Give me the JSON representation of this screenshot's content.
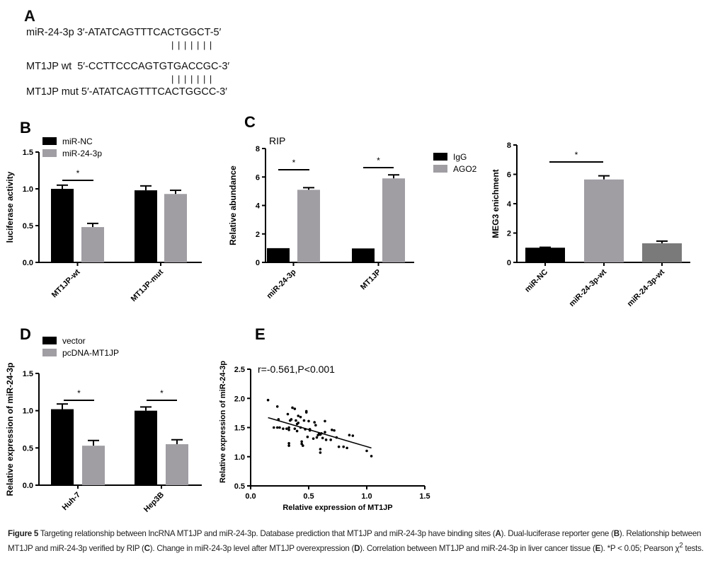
{
  "panel_a": {
    "label": "A",
    "line1": "miR-24-3p 3′-ATATCAGTTTCACTGGCT-5′",
    "pair1": "| | | | | | |",
    "line2": "MT1JP wt  5′-CCTTCCCAGTGTGACCGC-3′",
    "pair2": "| | | | | | |",
    "line3": "MT1JP mut 5′-ATATCAGTTTCACTGGCC-3′"
  },
  "chart_data": [
    {
      "panel": "B",
      "type": "bar",
      "categories": [
        "MT1JP-wt",
        "MT1JP-mut"
      ],
      "series": [
        {
          "name": "miR-NC",
          "color": "#000000",
          "values": [
            1.0,
            0.98
          ],
          "errors": [
            0.05,
            0.06
          ]
        },
        {
          "name": "miR-24-3p",
          "color": "#a09da3",
          "values": [
            0.48,
            0.93
          ],
          "errors": [
            0.05,
            0.05
          ]
        }
      ],
      "xlabel": "",
      "ylabel": "luciferase activity",
      "ylim": [
        0,
        1.5
      ],
      "yticks": [
        "0.0",
        "0.5",
        "1.0",
        "1.5"
      ],
      "significance": [
        "*"
      ],
      "legend": "top-left"
    },
    {
      "panel": "C",
      "type": "bar",
      "title": "RIP",
      "categories": [
        "miR-24-3p",
        "MT1JP"
      ],
      "series": [
        {
          "name": "IgG",
          "color": "#000000",
          "values": [
            1.0,
            0.98
          ],
          "errors": [
            0.0,
            0.0
          ]
        },
        {
          "name": "AGO2",
          "color": "#a09da3",
          "values": [
            5.1,
            5.9
          ],
          "errors": [
            0.15,
            0.25
          ]
        }
      ],
      "xlabel": "",
      "ylabel": "Relative abundance",
      "ylim": [
        0,
        8
      ],
      "yticks": [
        "0",
        "2",
        "4",
        "6",
        "8"
      ],
      "significance": [
        "*",
        "*"
      ],
      "legend": "right"
    },
    {
      "panel": "C2",
      "type": "bar",
      "categories": [
        "miR-NC",
        "miR-24-3p-wt",
        "miR-24-3p-wt"
      ],
      "series": [
        {
          "name": "",
          "colors": [
            "#000000",
            "#a09da3",
            "#7a7a7a"
          ],
          "values": [
            1.0,
            5.65,
            1.3
          ],
          "errors": [
            0.03,
            0.25,
            0.15
          ]
        }
      ],
      "xlabel": "",
      "ylabel": "MEG3 enichment",
      "ylim": [
        0,
        8
      ],
      "yticks": [
        "0",
        "2",
        "4",
        "6",
        "8"
      ],
      "significance": [
        "*"
      ]
    },
    {
      "panel": "D",
      "type": "bar",
      "categories": [
        "Huh-7",
        "Hep3B"
      ],
      "series": [
        {
          "name": "vector",
          "color": "#000000",
          "values": [
            1.02,
            1.0
          ],
          "errors": [
            0.07,
            0.05
          ]
        },
        {
          "name": "pcDNA-MT1JP",
          "color": "#a09da3",
          "values": [
            0.53,
            0.55
          ],
          "errors": [
            0.07,
            0.06
          ]
        }
      ],
      "xlabel": "",
      "ylabel": "Relative expression of miR-24-3p",
      "ylim": [
        0,
        1.5
      ],
      "yticks": [
        "0.0",
        "0.5",
        "1.0",
        "1.5"
      ],
      "significance": [
        "*",
        "*"
      ],
      "legend": "top-left"
    },
    {
      "panel": "E",
      "type": "scatter",
      "annotation": "r=-0.561,P<0.001",
      "xlabel": "Relative expression of MT1JP",
      "ylabel": "Relative expression of miR-24-3p",
      "xlim": [
        0,
        1.5
      ],
      "ylim": [
        0.5,
        2.5
      ],
      "xticks": [
        "0.0",
        "0.5",
        "1.0",
        "1.5"
      ],
      "yticks": [
        "0.5",
        "1.0",
        "1.5",
        "2.0",
        "2.5"
      ],
      "fit": [
        [
          0.15,
          1.67
        ],
        [
          1.04,
          1.15
        ]
      ],
      "points": [
        [
          0.15,
          1.97
        ],
        [
          0.23,
          1.86
        ],
        [
          0.24,
          1.64
        ],
        [
          0.2,
          1.5
        ],
        [
          0.23,
          1.5
        ],
        [
          0.25,
          1.5
        ],
        [
          0.28,
          1.48
        ],
        [
          0.31,
          1.48
        ],
        [
          0.33,
          1.5
        ],
        [
          0.33,
          1.46
        ],
        [
          0.32,
          1.73
        ],
        [
          0.36,
          1.84
        ],
        [
          0.38,
          1.82
        ],
        [
          0.34,
          1.62
        ],
        [
          0.35,
          1.64
        ],
        [
          0.33,
          1.23
        ],
        [
          0.33,
          1.19
        ],
        [
          0.38,
          1.48
        ],
        [
          0.39,
          1.62
        ],
        [
          0.4,
          1.56
        ],
        [
          0.4,
          1.44
        ],
        [
          0.41,
          1.58
        ],
        [
          0.41,
          1.7
        ],
        [
          0.43,
          1.68
        ],
        [
          0.43,
          1.5
        ],
        [
          0.44,
          1.26
        ],
        [
          0.44,
          1.22
        ],
        [
          0.45,
          1.19
        ],
        [
          0.46,
          1.62
        ],
        [
          0.47,
          1.47
        ],
        [
          0.48,
          1.78
        ],
        [
          0.48,
          1.76
        ],
        [
          0.49,
          1.34
        ],
        [
          0.5,
          1.61
        ],
        [
          0.51,
          1.45
        ],
        [
          0.51,
          1.47
        ],
        [
          0.54,
          1.31
        ],
        [
          0.55,
          1.59
        ],
        [
          0.56,
          1.54
        ],
        [
          0.57,
          1.33
        ],
        [
          0.58,
          1.37
        ],
        [
          0.59,
          1.4
        ],
        [
          0.6,
          1.13
        ],
        [
          0.6,
          1.07
        ],
        [
          0.6,
          1.38
        ],
        [
          0.61,
          1.4
        ],
        [
          0.62,
          1.32
        ],
        [
          0.64,
          1.42
        ],
        [
          0.64,
          1.61
        ],
        [
          0.65,
          1.29
        ],
        [
          0.69,
          1.29
        ],
        [
          0.7,
          1.46
        ],
        [
          0.72,
          1.45
        ],
        [
          0.74,
          1.33
        ],
        [
          0.76,
          1.17
        ],
        [
          0.8,
          1.17
        ],
        [
          0.83,
          1.15
        ],
        [
          0.85,
          1.37
        ],
        [
          0.88,
          1.36
        ],
        [
          1.0,
          1.1
        ],
        [
          1.04,
          1.01
        ]
      ]
    }
  ],
  "panel_labels": [
    "B",
    "C",
    "D",
    "E"
  ],
  "caption": {
    "figure_label": "Figure 5",
    "text1": " Targeting relationship between lncRNA MT1JP and miR-24-3p. Database prediction that MT1JP and miR-24-3p have binding sites (",
    "a": "A",
    "text2": "). Dual-luciferase reporter gene (",
    "b": "B",
    "text3": "). Relationship between MT1JP and miR-24-3p verified by RIP (",
    "c": "C",
    "text4": "). Change in miR-24-3p level after MT1JP overexpression (",
    "d": "D",
    "text5": "). Correlation between MT1JP and miR-24-3p in liver cancer tissue (",
    "e": "E",
    "text6": "). *P < 0.05; Pearson χ",
    "sup": "2",
    "text7": " tests."
  }
}
